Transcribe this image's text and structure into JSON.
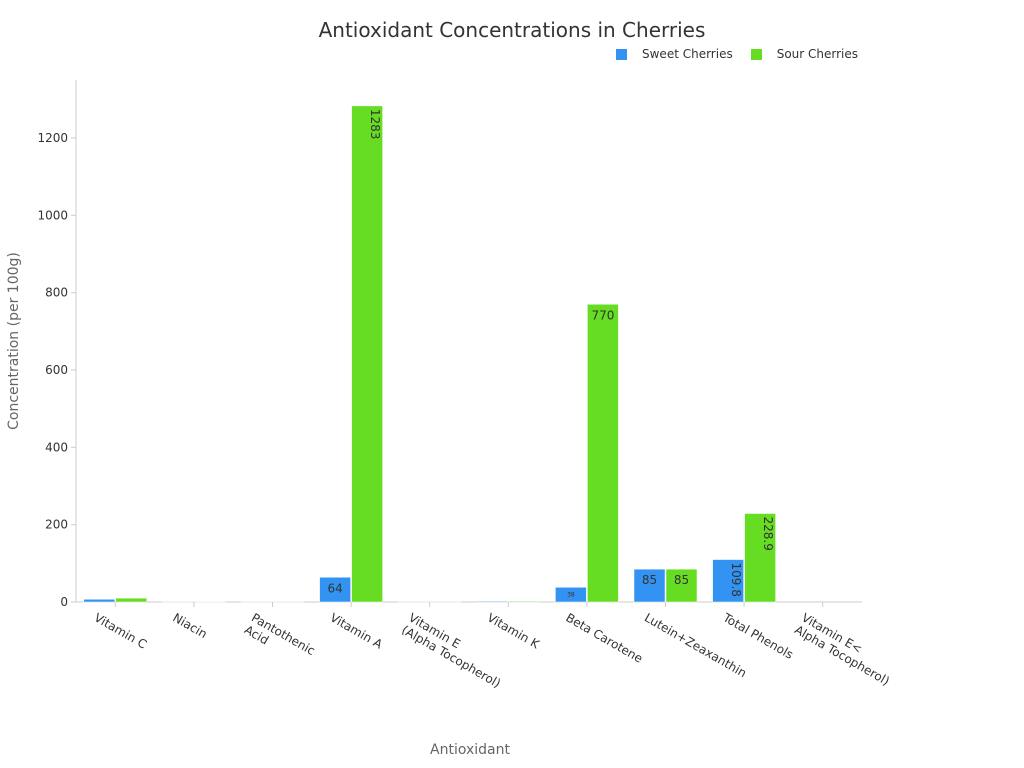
{
  "chart_data": {
    "type": "bar",
    "title": "Antioxidant Concentrations in Cherries",
    "xlabel": "Antioxidant",
    "ylabel": "Concentration (per 100g)",
    "categories": [
      "Vitamin C",
      "Niacin",
      "Pantothenic\nAcid",
      "Vitamin A",
      "Vitamin E\n(Alpha Tocopherol)",
      "Vitamin K",
      "Beta Carotene",
      "Lutein+Zeaxanthin",
      "Total Phenols",
      "Vitamin E<\n\nAlpha Tocopherol)"
    ],
    "series": [
      {
        "name": "Sweet Cherries",
        "color": "#3393f3",
        "values": [
          7,
          0.15,
          0.2,
          64,
          0.07,
          2.1,
          38,
          85,
          109.8,
          0
        ]
      },
      {
        "name": "Sour Cherries",
        "color": "#66dd22",
        "values": [
          10,
          0.4,
          0.14,
          1283,
          0.07,
          2.1,
          770,
          85,
          228.9,
          0
        ]
      }
    ],
    "data_labels": [
      [
        "",
        "",
        "",
        "64",
        "",
        "",
        "38",
        "85",
        "109.8",
        ""
      ],
      [
        "",
        "",
        "",
        "1283",
        "",
        "",
        "770",
        "85",
        "228.9",
        ""
      ]
    ],
    "yticks": [
      0,
      200,
      400,
      600,
      800,
      1000,
      1200
    ],
    "ylim": [
      0,
      1350
    ],
    "legend_position": "top-right",
    "grid": false
  }
}
